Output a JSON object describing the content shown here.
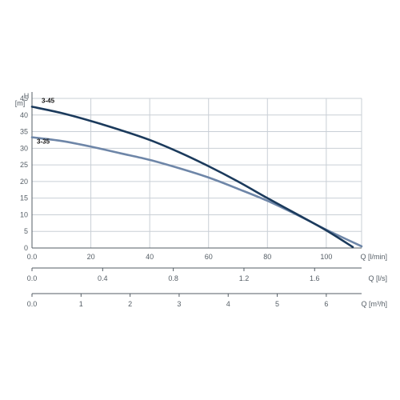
{
  "chart_data": {
    "type": "line",
    "xlabel": "Q [l/min]",
    "ylabel": "H [m]",
    "ylabel_top": "H",
    "ylabel_unit": "[m]",
    "xlim": [
      0,
      112
    ],
    "ylim": [
      0,
      45
    ],
    "x_ticks": [
      "0.0",
      "20",
      "40",
      "60",
      "80",
      "100"
    ],
    "y_ticks": [
      "0",
      "5",
      "10",
      "15",
      "20",
      "25",
      "30",
      "35",
      "40",
      "45"
    ],
    "grid": true,
    "secondary_axes": [
      {
        "label": "Q [l/s]",
        "ticks": [
          "0.0",
          "0.4",
          "0.8",
          "1.2",
          "1.6"
        ],
        "range": [
          0,
          1.866
        ]
      },
      {
        "label": "Q [m³/h]",
        "ticks": [
          "0.0",
          "1",
          "2",
          "3",
          "4",
          "5",
          "6"
        ],
        "range": [
          0,
          6.72
        ]
      }
    ],
    "series": [
      {
        "name": "3-45",
        "color": "#1b3a5c",
        "x": [
          0,
          10,
          20,
          30,
          40,
          50,
          60,
          70,
          80,
          90,
          100,
          109
        ],
        "y": [
          42.5,
          40.6,
          38.2,
          35.5,
          32.5,
          28.8,
          24.6,
          20.0,
          15.0,
          10.2,
          5.3,
          0.3
        ]
      },
      {
        "name": "3-35",
        "color": "#6e86a8",
        "x": [
          0,
          10,
          20,
          30,
          40,
          50,
          60,
          70,
          80,
          90,
          100,
          112
        ],
        "y": [
          33.3,
          32.2,
          30.5,
          28.5,
          26.5,
          24.0,
          21.2,
          17.8,
          14.2,
          10.0,
          5.5,
          0.5
        ]
      }
    ]
  }
}
